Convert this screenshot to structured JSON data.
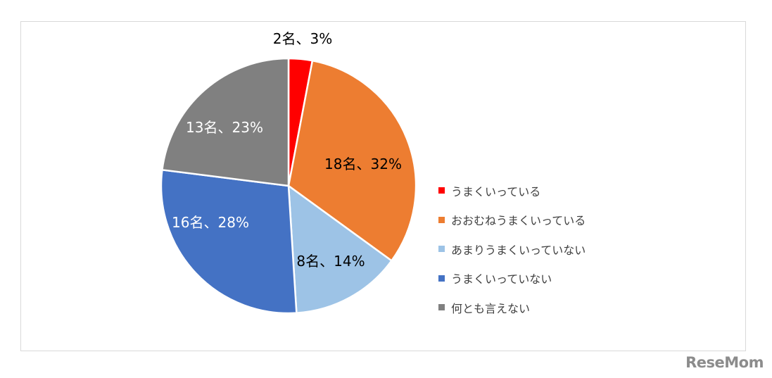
{
  "chart_data": {
    "type": "pie",
    "categories": [
      "うまくいっている",
      "おおむねうまくいっている",
      "あまりうまくいっていない",
      "うまくいっていない",
      "何とも言えない"
    ],
    "counts": [
      2,
      18,
      8,
      16,
      13
    ],
    "percents": [
      3,
      32,
      14,
      28,
      23
    ],
    "data_labels": [
      "2名、3%",
      "18名、32%",
      "8名、14%",
      "16名、28%",
      "13名、23%"
    ],
    "colors": [
      "#ff0000",
      "#ed7d31",
      "#9dc3e6",
      "#4472c4",
      "#808080"
    ],
    "label_colors": [
      "#000000",
      "#000000",
      "#000000",
      "#ffffff",
      "#ffffff"
    ],
    "legend_position": "right"
  },
  "watermark": "ReseMom"
}
